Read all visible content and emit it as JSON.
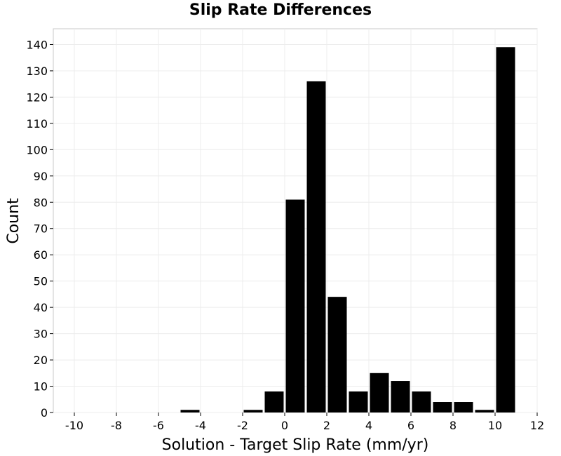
{
  "chart_data": {
    "type": "bar",
    "title": "Slip Rate Differences",
    "xlabel": "Solution - Target Slip Rate (mm/yr)",
    "ylabel": "Count",
    "xlim": [
      -11,
      12
    ],
    "ylim": [
      0,
      146
    ],
    "bin_width": 1,
    "x_ticks": [
      -10,
      -8,
      -6,
      -4,
      -2,
      0,
      2,
      4,
      6,
      8,
      10,
      12
    ],
    "y_ticks": [
      0,
      10,
      20,
      30,
      40,
      50,
      60,
      70,
      80,
      90,
      100,
      110,
      120,
      130,
      140
    ],
    "x_tick_labels": [
      "-10",
      "-8",
      "-6",
      "-4",
      "-2",
      "0",
      "2",
      "4",
      "6",
      "8",
      "10",
      "12"
    ],
    "y_tick_labels": [
      "0",
      "10",
      "20",
      "30",
      "40",
      "50",
      "60",
      "70",
      "80",
      "90",
      "100",
      "110",
      "120",
      "130",
      "140"
    ],
    "grid": true,
    "bar_color": "#000000",
    "bins": [
      {
        "x": -4.5,
        "count": 1
      },
      {
        "x": -1.5,
        "count": 1
      },
      {
        "x": -0.5,
        "count": 8
      },
      {
        "x": 0.5,
        "count": 81
      },
      {
        "x": 1.5,
        "count": 126
      },
      {
        "x": 2.5,
        "count": 44
      },
      {
        "x": 3.5,
        "count": 8
      },
      {
        "x": 4.5,
        "count": 15
      },
      {
        "x": 5.5,
        "count": 12
      },
      {
        "x": 6.5,
        "count": 8
      },
      {
        "x": 7.5,
        "count": 4
      },
      {
        "x": 8.5,
        "count": 4
      },
      {
        "x": 9.5,
        "count": 1
      },
      {
        "x": 10.5,
        "count": 139
      }
    ]
  }
}
